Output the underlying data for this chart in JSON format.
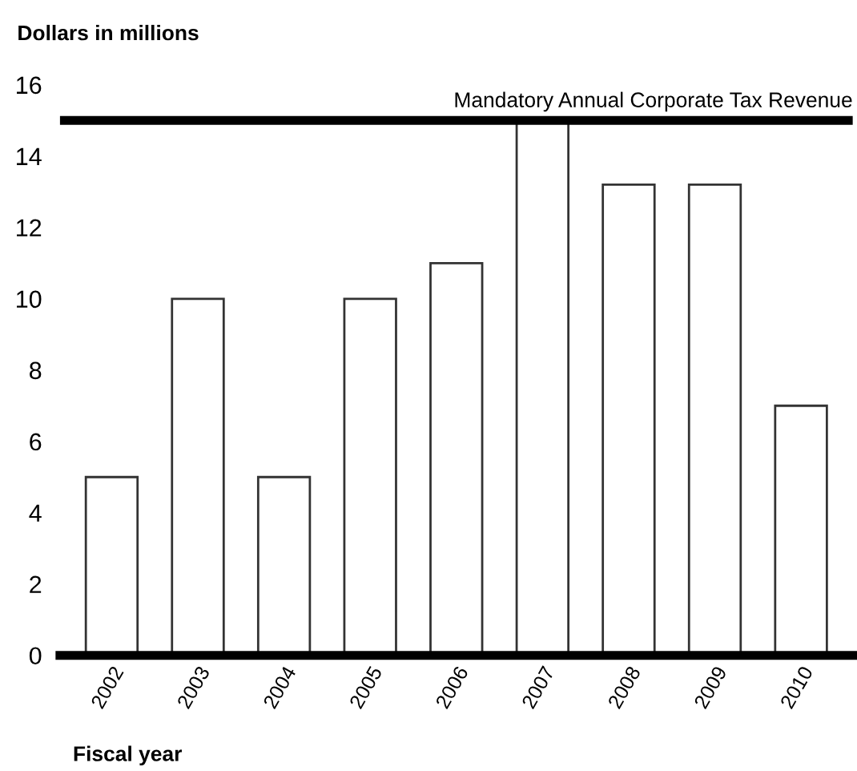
{
  "chart_data": {
    "type": "bar",
    "ylabel": "Dollars in millions",
    "xlabel": "Fiscal year",
    "categories": [
      "2002",
      "2003",
      "2004",
      "2005",
      "2006",
      "2007",
      "2008",
      "2009",
      "2010"
    ],
    "values": [
      5,
      10,
      5,
      10,
      11,
      15,
      13.2,
      13.2,
      7
    ],
    "color": "#ffffff",
    "ylim": [
      0,
      16
    ],
    "yticks": [
      0,
      2,
      4,
      6,
      8,
      10,
      12,
      14,
      16
    ],
    "grid": false,
    "ref_lines": [
      {
        "axis": "y",
        "value": 15,
        "label": "Mandatory Annual Corporate Tax Revenue",
        "color": "#000000"
      }
    ]
  }
}
